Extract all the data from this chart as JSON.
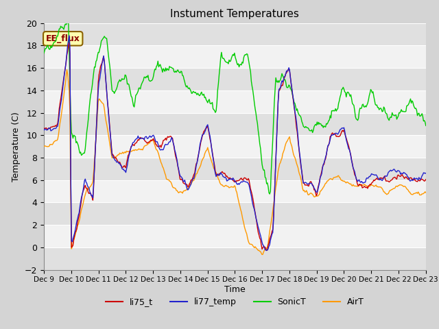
{
  "title": "Instument Temperatures",
  "ylabel": "Temperature (C)",
  "xlabel": "Time",
  "annotation": "EE_flux",
  "ylim_min": -2,
  "ylim_max": 20,
  "fig_bg": "#d4d4d4",
  "plot_bg": "#f2f2f2",
  "band_color": "#e0e0e0",
  "grid_color": "#ffffff",
  "line_colors": {
    "li75_t": "#cc0000",
    "li77_temp": "#2222cc",
    "SonicT": "#00cc00",
    "AirT": "#ff9900"
  },
  "xtick_labels": [
    "Dec 9",
    "Dec 10",
    "Dec 11",
    "Dec 12",
    "Dec 13",
    "Dec 14",
    "Dec 15",
    "Dec 16",
    "Dec 17",
    "Dec 18",
    "Dec 19",
    "Dec 20",
    "Dec 21",
    "Dec 22",
    "Dec 23"
  ],
  "yticks": [
    -2,
    0,
    2,
    4,
    6,
    8,
    10,
    12,
    14,
    16,
    18,
    20
  ],
  "n_points": 500
}
